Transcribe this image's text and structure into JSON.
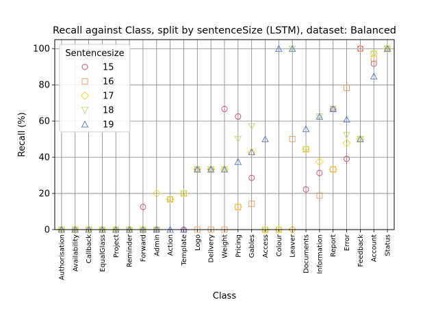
{
  "chart_data": {
    "type": "scatter",
    "title": "Recall against Class, split by sentenceSize (LSTM), dataset: Balanced",
    "xlabel": "Class",
    "ylabel": "Recall (%)",
    "ylim": [
      0,
      105
    ],
    "yticks": [
      0,
      20,
      40,
      60,
      80,
      100
    ],
    "grid": true,
    "legend": {
      "title": "Sentencesize",
      "position": "top-left"
    },
    "categories": [
      "Authorisation",
      "Availability",
      "Callback",
      "EqualGlass",
      "Project",
      "Reminder",
      "Forward",
      "Admin",
      "Action",
      "Template",
      "Logo",
      "Delivery",
      "Weight",
      "Pricing",
      "Gables",
      "Access",
      "Colour",
      "Leaver",
      "Documents",
      "Information",
      "Report",
      "Error",
      "Feedback",
      "Account",
      "Status"
    ],
    "series": [
      {
        "name": "15",
        "marker": "circle",
        "color": "#d6476b",
        "values": [
          0,
          0,
          0,
          0,
          0,
          0,
          12.5,
          0,
          16.7,
          0,
          33.3,
          33.3,
          66.7,
          62.5,
          28.6,
          0,
          0,
          0,
          22.2,
          31.3,
          66.7,
          39.1,
          100,
          91.7,
          100
        ]
      },
      {
        "name": "16",
        "marker": "square",
        "color": "#f0a060",
        "values": [
          0,
          0,
          0,
          0,
          0,
          0,
          0,
          0,
          16.7,
          20,
          0,
          0,
          0,
          12.5,
          14.3,
          0,
          0,
          50,
          44.4,
          18.8,
          33.3,
          78.3,
          100,
          94.4,
          100
        ]
      },
      {
        "name": "17",
        "marker": "diamond",
        "color": "#ffd733",
        "values": [
          0,
          0,
          0,
          0,
          0,
          0,
          0,
          20,
          16.7,
          20,
          33.3,
          33.3,
          33.3,
          12.5,
          42.9,
          0,
          0,
          0,
          44.4,
          37.5,
          33.3,
          47.8,
          50,
          97.2,
          100
        ]
      },
      {
        "name": "18",
        "marker": "triangle-down",
        "color": "#c3e070",
        "values": [
          0,
          0,
          0,
          0,
          0,
          0,
          0,
          0,
          16.7,
          20,
          33.3,
          33.3,
          33.3,
          50,
          57.1,
          0,
          0,
          100,
          44.4,
          62.5,
          66.7,
          52.2,
          50,
          97.2,
          100
        ]
      },
      {
        "name": "19",
        "marker": "triangle-up",
        "color": "#6080cc",
        "values": [
          0,
          0,
          0,
          0,
          0,
          0,
          0,
          0,
          0,
          0,
          33.3,
          33.3,
          33.3,
          37.5,
          42.9,
          50,
          100,
          100,
          55.6,
          62.5,
          66.7,
          60.9,
          50,
          84.7,
          100
        ]
      }
    ]
  }
}
